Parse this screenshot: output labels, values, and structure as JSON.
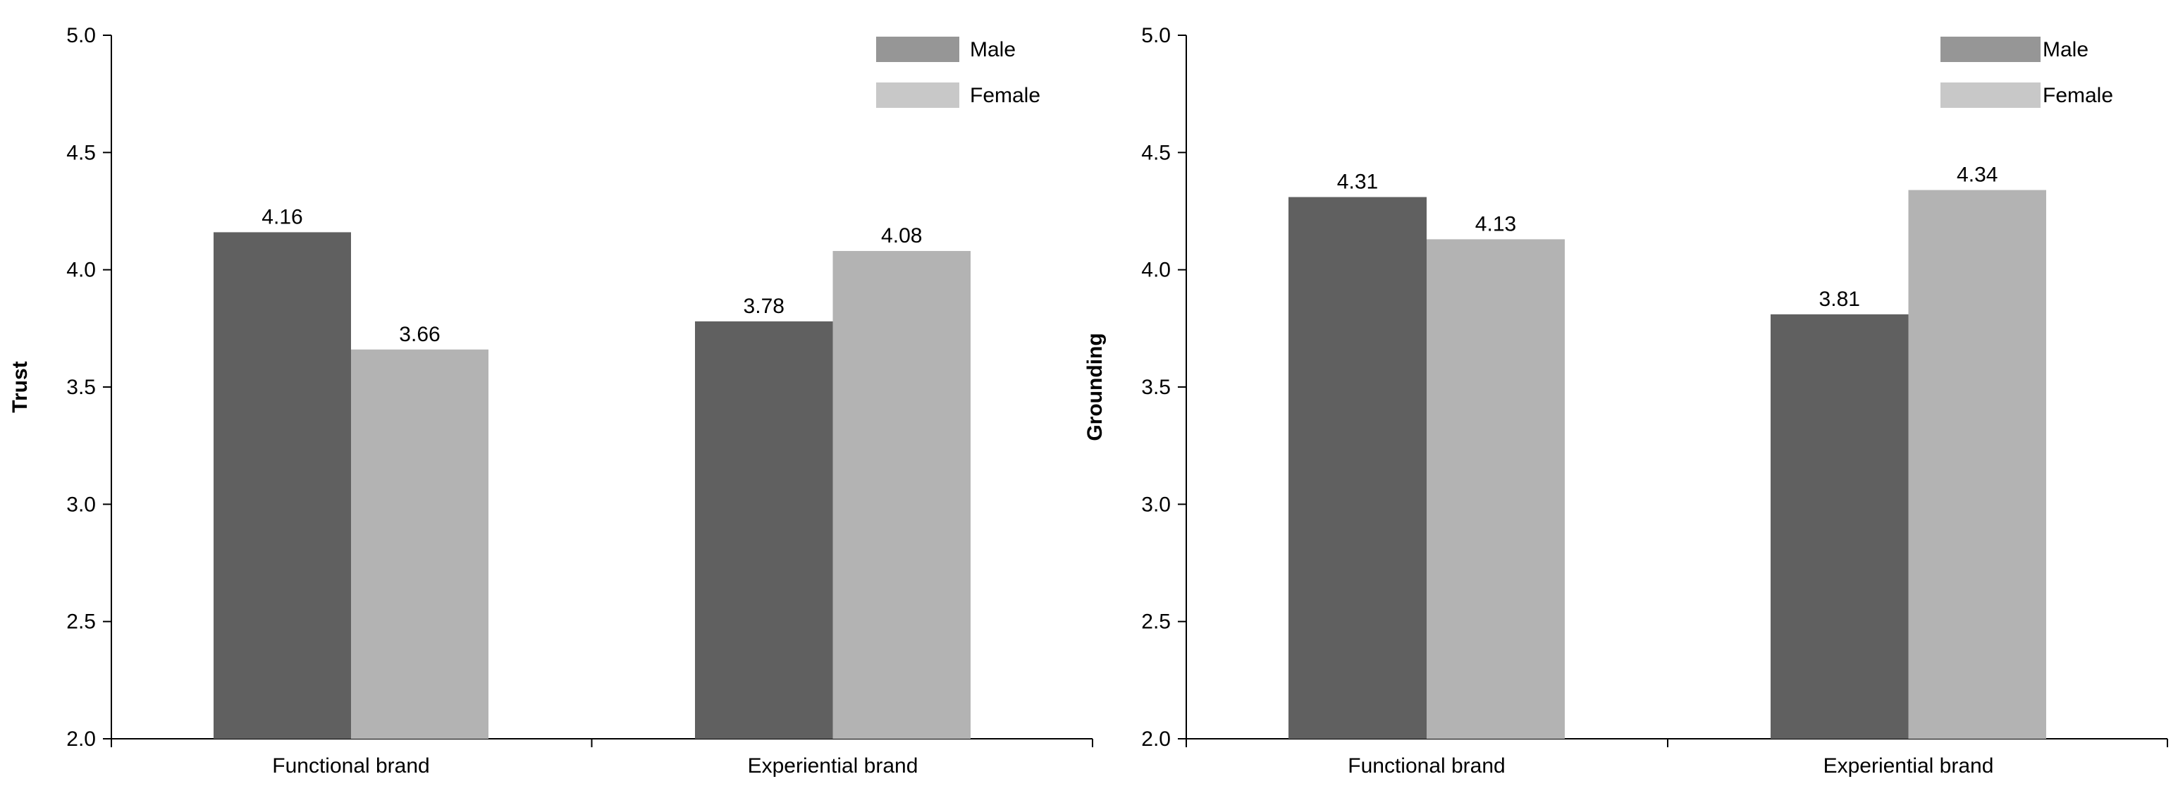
{
  "chart_data": [
    {
      "type": "bar",
      "title": "",
      "xlabel": "",
      "ylabel": "Trust",
      "ylim": [
        2.0,
        5.0
      ],
      "yticks": [
        "2.0",
        "2.5",
        "3.0",
        "3.5",
        "4.0",
        "4.5",
        "5.0"
      ],
      "grid": false,
      "legend_position": "top-right",
      "categories": [
        "Functional brand",
        "Experiential brand"
      ],
      "series": [
        {
          "name": "Male",
          "values": [
            4.16,
            3.78
          ],
          "labels": [
            "4.16",
            "3.78"
          ],
          "color": "#606060",
          "legend_color": "#969696"
        },
        {
          "name": "Female",
          "values": [
            3.66,
            4.08
          ],
          "labels": [
            "3.66",
            "4.08"
          ],
          "color": "#b3b3b3",
          "legend_color": "#c8c8c8"
        }
      ]
    },
    {
      "type": "bar",
      "title": "",
      "xlabel": "",
      "ylabel": "Grounding",
      "ylim": [
        2.0,
        5.0
      ],
      "yticks": [
        "2.0",
        "2.5",
        "3.0",
        "3.5",
        "4.0",
        "4.5",
        "5.0"
      ],
      "grid": false,
      "legend_position": "top-right",
      "categories": [
        "Functional brand",
        "Experiential brand"
      ],
      "series": [
        {
          "name": "Male",
          "values": [
            4.31,
            3.81
          ],
          "labels": [
            "4.31",
            "3.81"
          ],
          "color": "#606060",
          "legend_color": "#969696"
        },
        {
          "name": "Female",
          "values": [
            4.13,
            4.34
          ],
          "labels": [
            "4.13",
            "4.34"
          ],
          "color": "#b3b3b3",
          "legend_color": "#c8c8c8"
        }
      ]
    }
  ]
}
